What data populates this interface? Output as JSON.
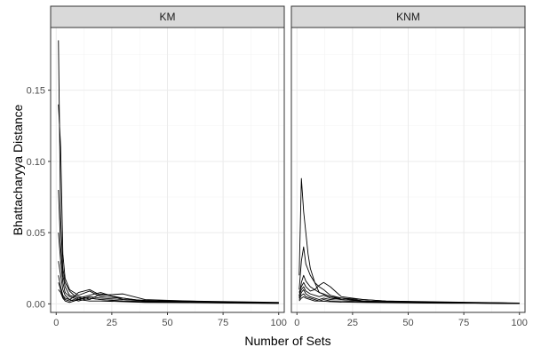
{
  "chart_data": {
    "type": "line",
    "xlabel": "Number of Sets",
    "ylabel": "Bhattacharyya Distance",
    "xlim": [
      -2.5,
      102.5
    ],
    "ylim": [
      -0.006,
      0.194
    ],
    "x_ticks": [
      0,
      25,
      50,
      75,
      100
    ],
    "y_ticks": [
      0.0,
      0.05,
      0.1,
      0.15
    ],
    "y_tick_labels": [
      "0.00",
      "0.05",
      "0.10",
      "0.15"
    ],
    "grid": true,
    "panels": [
      {
        "label": "KM",
        "series": [
          {
            "x": [
              1,
              2,
              3,
              4,
              6,
              8,
              10,
              15,
              20,
              30,
              40,
              60,
              80,
              100
            ],
            "y": [
              0.185,
              0.06,
              0.025,
              0.015,
              0.009,
              0.006,
              0.005,
              0.004,
              0.003,
              0.002,
              0.0015,
              0.001,
              0.0008,
              0.0006
            ]
          },
          {
            "x": [
              1,
              2,
              3,
              4,
              6,
              8,
              10,
              15,
              20,
              30,
              40,
              60,
              80,
              100
            ],
            "y": [
              0.14,
              0.11,
              0.035,
              0.018,
              0.01,
              0.008,
              0.006,
              0.009,
              0.005,
              0.004,
              0.002,
              0.0015,
              0.001,
              0.0007
            ]
          },
          {
            "x": [
              1,
              2,
              3,
              4,
              6,
              8,
              10,
              15,
              20,
              30,
              40,
              60,
              80,
              100
            ],
            "y": [
              0.08,
              0.04,
              0.02,
              0.012,
              0.006,
              0.005,
              0.004,
              0.006,
              0.008,
              0.003,
              0.002,
              0.002,
              0.001,
              0.0008
            ]
          },
          {
            "x": [
              1,
              2,
              3,
              4,
              6,
              8,
              10,
              15,
              20,
              30,
              40,
              60,
              80,
              100
            ],
            "y": [
              0.05,
              0.03,
              0.015,
              0.008,
              0.005,
              0.004,
              0.003,
              0.005,
              0.004,
              0.003,
              0.0025,
              0.0015,
              0.001,
              0.0006
            ]
          },
          {
            "x": [
              1,
              2,
              3,
              4,
              6,
              8,
              10,
              15,
              20,
              30,
              40,
              60,
              80,
              100
            ],
            "y": [
              0.03,
              0.02,
              0.01,
              0.006,
              0.003,
              0.005,
              0.008,
              0.01,
              0.006,
              0.007,
              0.003,
              0.002,
              0.0015,
              0.001
            ]
          },
          {
            "x": [
              1,
              2,
              3,
              4,
              6,
              8,
              10,
              15,
              20,
              30,
              40,
              60,
              80,
              100
            ],
            "y": [
              0.02,
              0.012,
              0.006,
              0.004,
              0.003,
              0.002,
              0.004,
              0.003,
              0.007,
              0.004,
              0.002,
              0.001,
              0.0008,
              0.0005
            ]
          },
          {
            "x": [
              1,
              2,
              3,
              4,
              6,
              8,
              10,
              15,
              20,
              30,
              40,
              60,
              80,
              100
            ],
            "y": [
              0.015,
              0.01,
              0.005,
              0.003,
              0.002,
              0.003,
              0.002,
              0.004,
              0.003,
              0.002,
              0.0015,
              0.001,
              0.0006,
              0.0004
            ]
          },
          {
            "x": [
              1,
              2,
              3,
              4,
              6,
              8,
              10,
              15,
              20,
              30,
              40,
              60,
              80,
              100
            ],
            "y": [
              0.01,
              0.008,
              0.004,
              0.002,
              0.001,
              0.002,
              0.003,
              0.002,
              0.002,
              0.0015,
              0.001,
              0.0008,
              0.0005,
              0.0003
            ]
          }
        ]
      },
      {
        "label": "KNM",
        "series": [
          {
            "x": [
              1,
              2,
              3,
              4,
              5,
              6,
              8,
              10,
              15,
              20,
              30,
              40,
              60,
              80,
              100
            ],
            "y": [
              0.02,
              0.088,
              0.065,
              0.05,
              0.035,
              0.025,
              0.015,
              0.008,
              0.005,
              0.004,
              0.002,
              0.0015,
              0.001,
              0.0008,
              0.0005
            ]
          },
          {
            "x": [
              1,
              2,
              3,
              4,
              6,
              8,
              10,
              12,
              15,
              20,
              30,
              40,
              60,
              80,
              100
            ],
            "y": [
              0.01,
              0.03,
              0.04,
              0.028,
              0.02,
              0.015,
              0.012,
              0.01,
              0.006,
              0.004,
              0.003,
              0.002,
              0.0015,
              0.001,
              0.0006
            ]
          },
          {
            "x": [
              1,
              2,
              3,
              4,
              6,
              8,
              10,
              12,
              15,
              20,
              30,
              40,
              60,
              80,
              100
            ],
            "y": [
              0.005,
              0.015,
              0.02,
              0.016,
              0.012,
              0.01,
              0.008,
              0.007,
              0.005,
              0.003,
              0.002,
              0.0015,
              0.001,
              0.0007,
              0.0004
            ]
          },
          {
            "x": [
              1,
              2,
              3,
              4,
              6,
              8,
              10,
              12,
              15,
              20,
              30,
              40,
              60,
              80,
              100
            ],
            "y": [
              0.008,
              0.012,
              0.015,
              0.012,
              0.009,
              0.01,
              0.013,
              0.015,
              0.012,
              0.005,
              0.003,
              0.002,
              0.0012,
              0.0008,
              0.0005
            ]
          },
          {
            "x": [
              1,
              2,
              3,
              4,
              6,
              8,
              10,
              12,
              15,
              20,
              30,
              40,
              60,
              80,
              100
            ],
            "y": [
              0.006,
              0.01,
              0.012,
              0.009,
              0.007,
              0.006,
              0.005,
              0.006,
              0.004,
              0.003,
              0.002,
              0.0015,
              0.0012,
              0.0008,
              0.0005
            ]
          },
          {
            "x": [
              1,
              2,
              3,
              4,
              6,
              8,
              10,
              12,
              15,
              20,
              30,
              40,
              60,
              80,
              100
            ],
            "y": [
              0.004,
              0.008,
              0.01,
              0.007,
              0.005,
              0.004,
              0.003,
              0.004,
              0.003,
              0.004,
              0.002,
              0.001,
              0.0008,
              0.0005,
              0.0003
            ]
          },
          {
            "x": [
              1,
              2,
              3,
              4,
              6,
              8,
              10,
              12,
              15,
              20,
              30,
              40,
              60,
              80,
              100
            ],
            "y": [
              0.003,
              0.006,
              0.007,
              0.005,
              0.004,
              0.003,
              0.002,
              0.003,
              0.002,
              0.002,
              0.0015,
              0.001,
              0.0007,
              0.0005,
              0.0003
            ]
          },
          {
            "x": [
              1,
              2,
              3,
              4,
              6,
              8,
              10,
              12,
              15,
              20,
              30,
              40,
              60,
              80,
              100
            ],
            "y": [
              0.002,
              0.004,
              0.005,
              0.004,
              0.003,
              0.002,
              0.002,
              0.0018,
              0.0015,
              0.0012,
              0.001,
              0.0008,
              0.0005,
              0.0004,
              0.0002
            ]
          }
        ]
      }
    ]
  }
}
